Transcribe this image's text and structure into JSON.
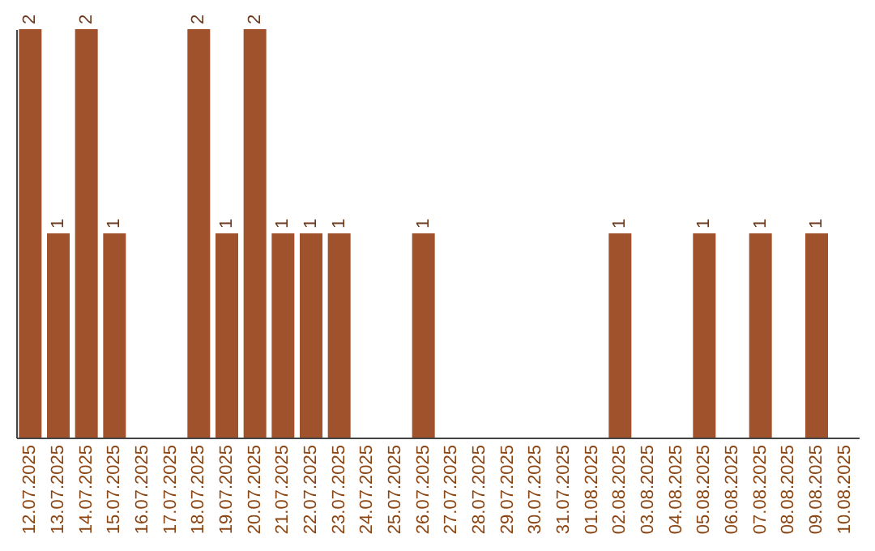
{
  "chart_data": {
    "type": "bar",
    "categories": [
      "12.07.2025",
      "13.07.2025",
      "14.07.2025",
      "15.07.2025",
      "16.07.2025",
      "17.07.2025",
      "18.07.2025",
      "19.07.2025",
      "20.07.2025",
      "21.07.2025",
      "22.07.2025",
      "23.07.2025",
      "24.07.2025",
      "25.07.2025",
      "26.07.2025",
      "27.07.2025",
      "28.07.2025",
      "29.07.2025",
      "30.07.2025",
      "31.07.2025",
      "01.08.2025",
      "02.08.2025",
      "03.08.2025",
      "04.08.2025",
      "05.08.2025",
      "06.08.2025",
      "07.08.2025",
      "08.08.2025",
      "09.08.2025",
      "10.08.2025"
    ],
    "values": [
      2,
      1,
      2,
      1,
      0,
      0,
      2,
      1,
      2,
      1,
      1,
      1,
      0,
      0,
      1,
      0,
      0,
      0,
      0,
      0,
      0,
      1,
      0,
      0,
      1,
      0,
      1,
      0,
      1,
      0
    ],
    "value_labels": [
      "2",
      "1",
      "2",
      "1",
      null,
      null,
      "2",
      "1",
      "2",
      "1",
      "1",
      "1",
      null,
      null,
      "1",
      null,
      null,
      null,
      null,
      null,
      null,
      "1",
      null,
      null,
      "1",
      null,
      "1",
      null,
      "1",
      null
    ],
    "color": "#a0522d",
    "ylim": [
      0,
      2
    ]
  }
}
